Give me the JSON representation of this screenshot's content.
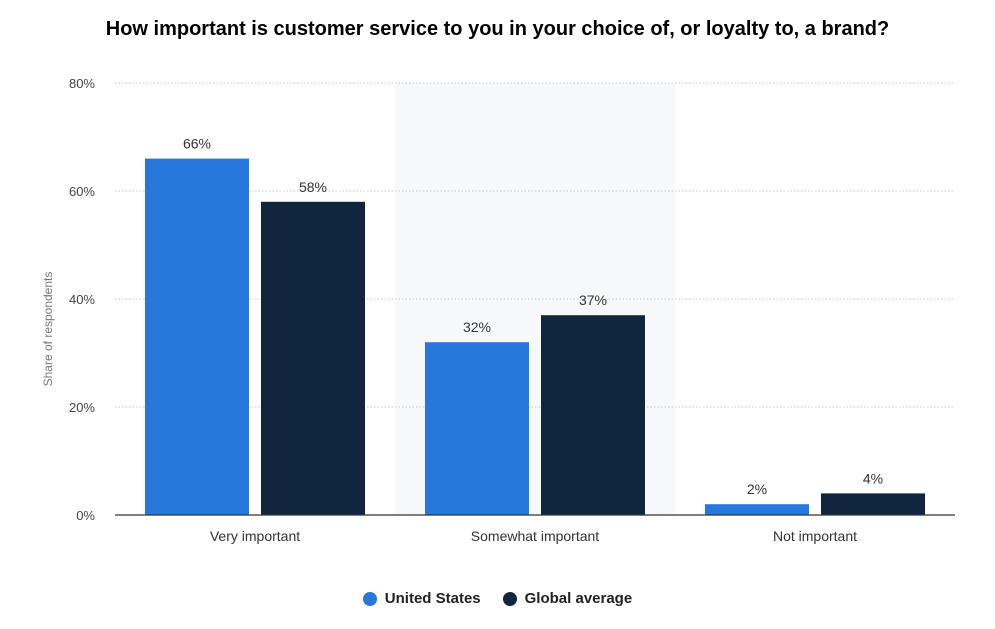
{
  "chart_data": {
    "type": "bar",
    "title": "How important is customer service to you in your choice of, or loyalty to, a brand?",
    "ylabel": "Share of respondents",
    "xlabel": "",
    "categories": [
      "Very important",
      "Somewhat important",
      "Not important"
    ],
    "series": [
      {
        "name": "United States",
        "values": [
          66,
          32,
          2
        ],
        "labels": [
          "66%",
          "32%",
          "2%"
        ],
        "color": "#2877dd"
      },
      {
        "name": "Global average",
        "values": [
          58,
          37,
          4
        ],
        "labels": [
          "58%",
          "37%",
          "4%"
        ],
        "color": "#10263f"
      }
    ],
    "ylim": [
      0,
      80
    ],
    "yticks": [
      0,
      20,
      40,
      60,
      80
    ],
    "ytick_labels": [
      "0%",
      "20%",
      "40%",
      "60%",
      "80%"
    ],
    "grid": true,
    "highlighted_category": "Somewhat important",
    "highlight_color": "#f7f8f9",
    "legend_position": "bottom"
  }
}
